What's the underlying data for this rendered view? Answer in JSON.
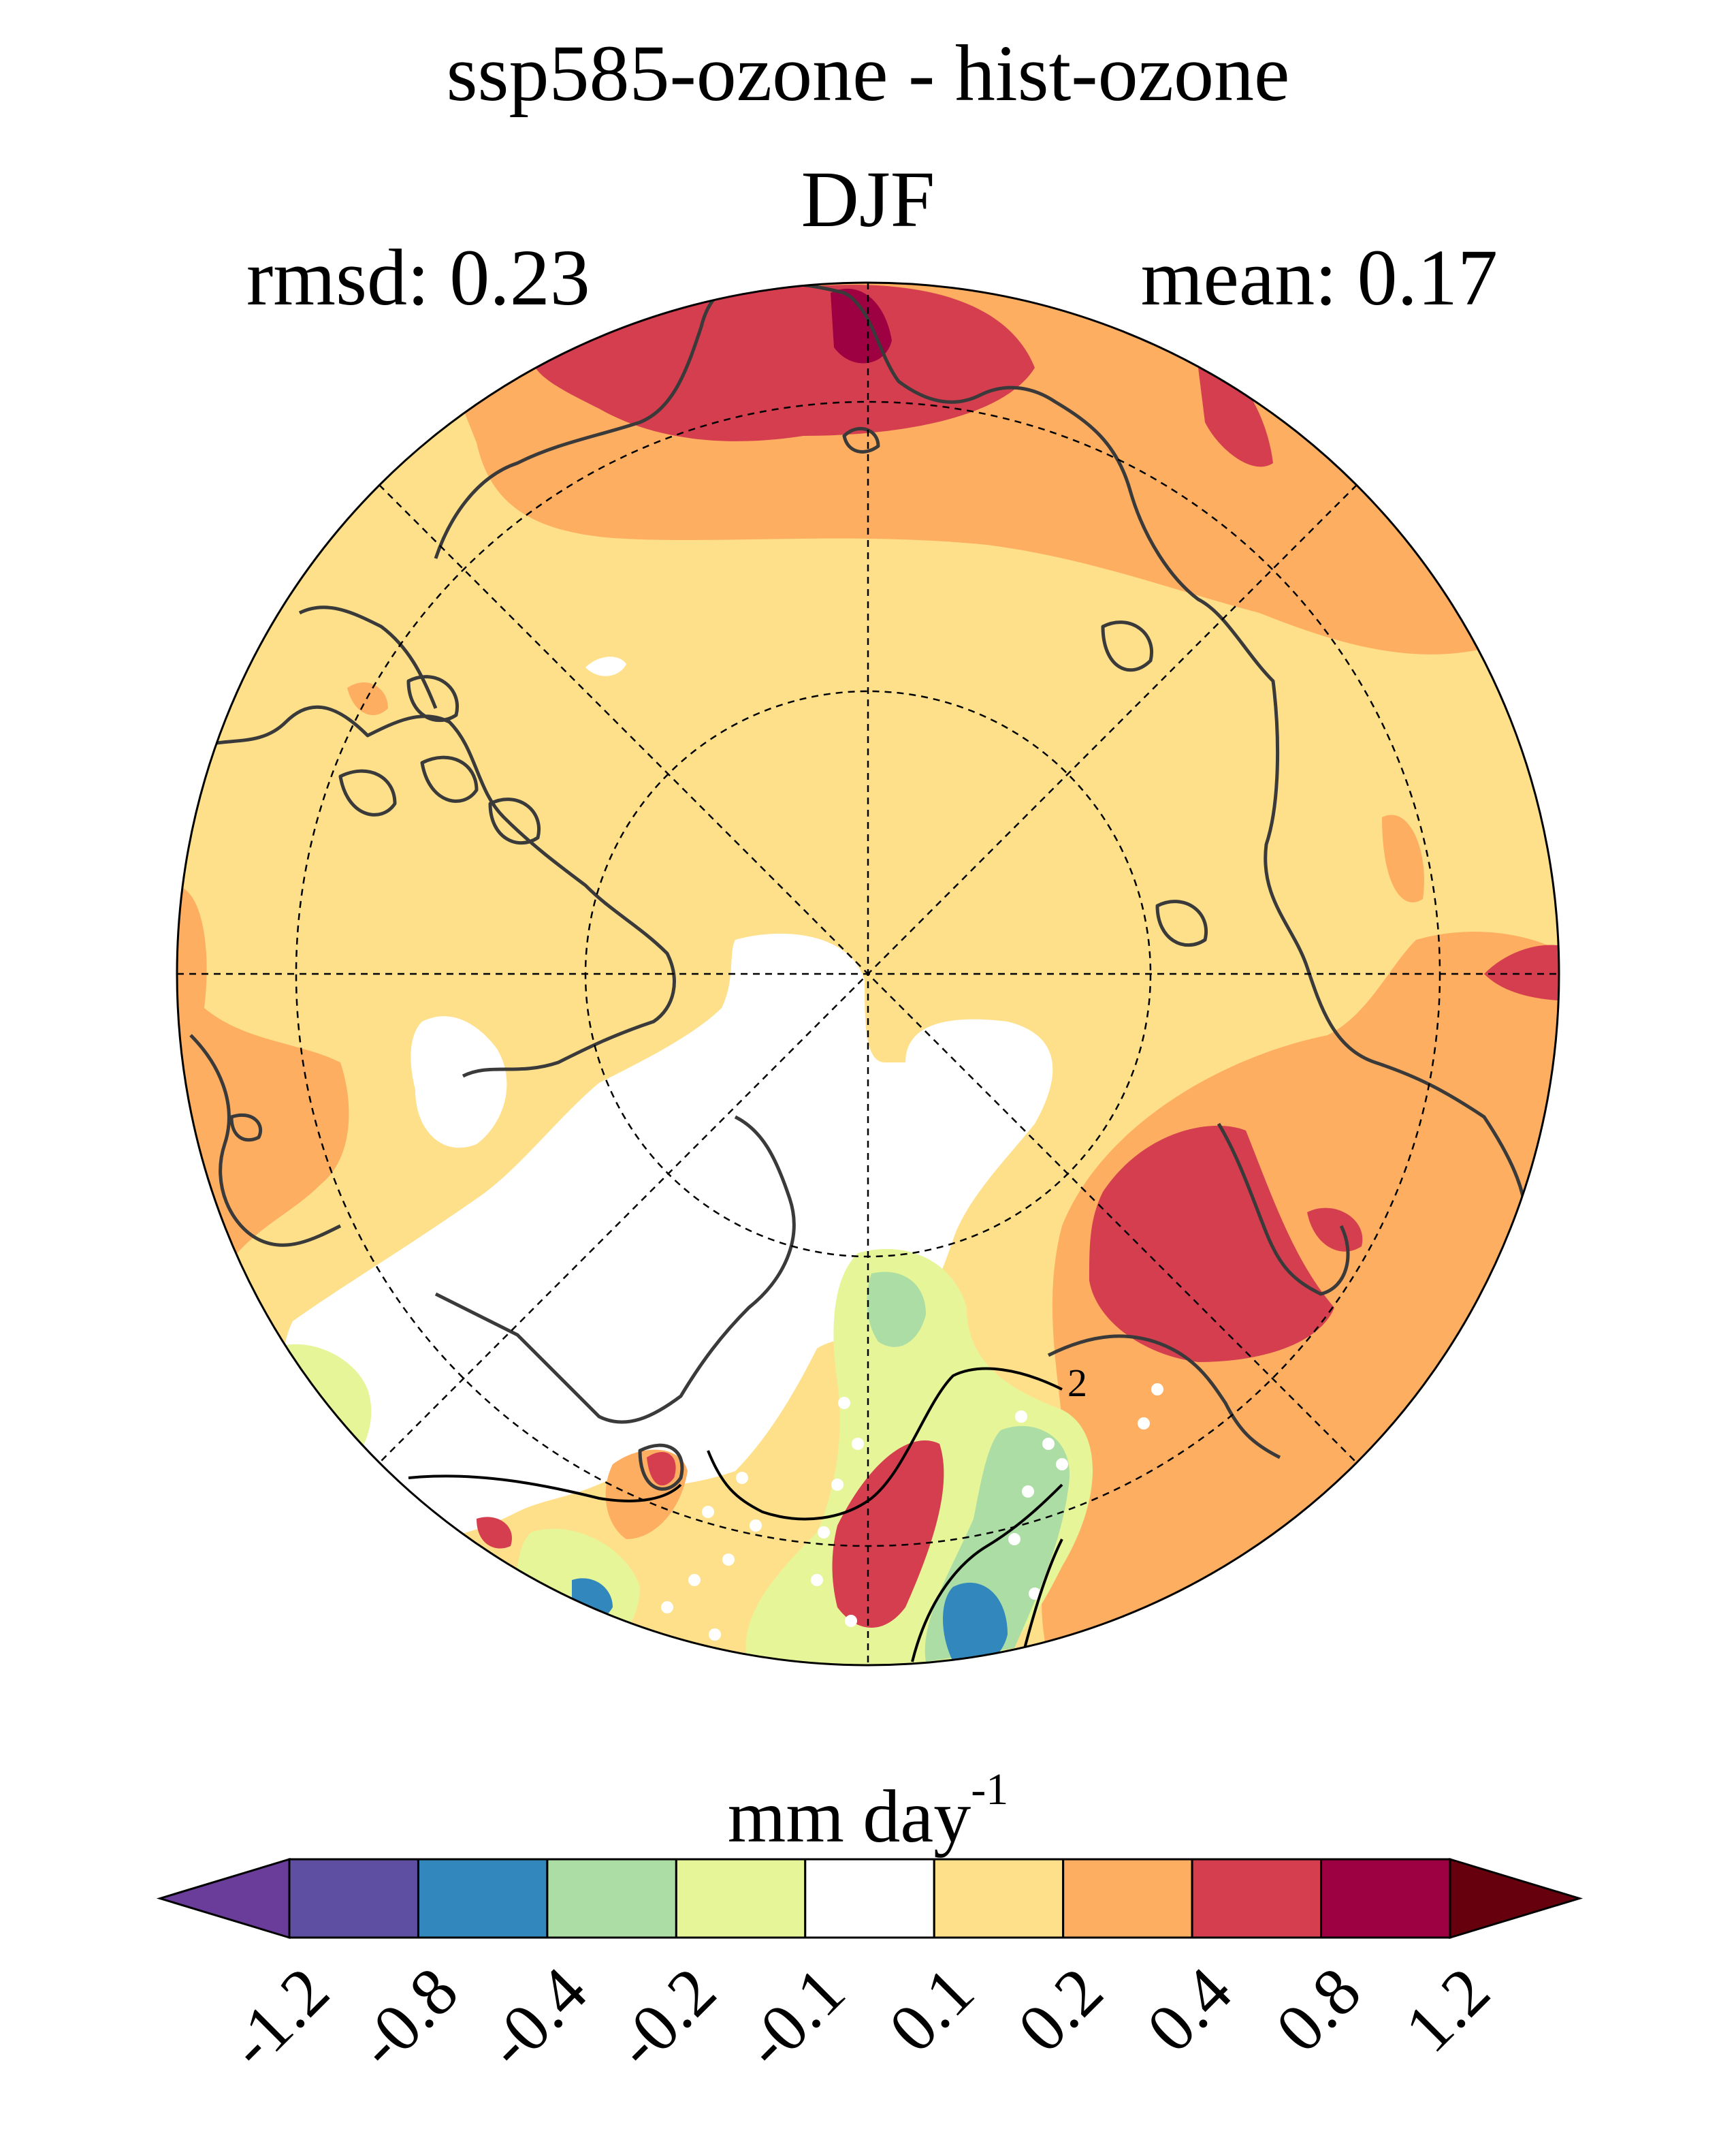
{
  "title": "ssp585-ozone - hist-ozone",
  "season": "DJF",
  "rmsd_text": "rmsd: 0.23",
  "mean_text": "mean: 0.17",
  "colorbar": {
    "unit_base": "mm day",
    "unit_exponent": "-1",
    "tick_labels": [
      "-1.2",
      "-0.8",
      "-0.4",
      "-0.2",
      "-0.1",
      "0.1",
      "0.2",
      "0.4",
      "0.8",
      "1.2"
    ],
    "colors": [
      "#6a3d9a",
      "#5e4fa2",
      "#3288bd",
      "#abdda4",
      "#e6f598",
      "#ffffff",
      "#fee08b",
      "#fdae61",
      "#d53e4f",
      "#9e0142",
      "#67000d"
    ]
  },
  "contour_label": "2",
  "map": {
    "projection": "north polar stereographic",
    "field": "precipitation change",
    "colors": {
      "light": "#fee08b",
      "orange": "#fdae61",
      "red": "#d53e4f",
      "darkred": "#9e0142",
      "white": "#ffffff",
      "lightgreen": "#e6f598",
      "green": "#abdda4",
      "blue": "#3288bd",
      "coast": "#3a3a3a"
    }
  }
}
